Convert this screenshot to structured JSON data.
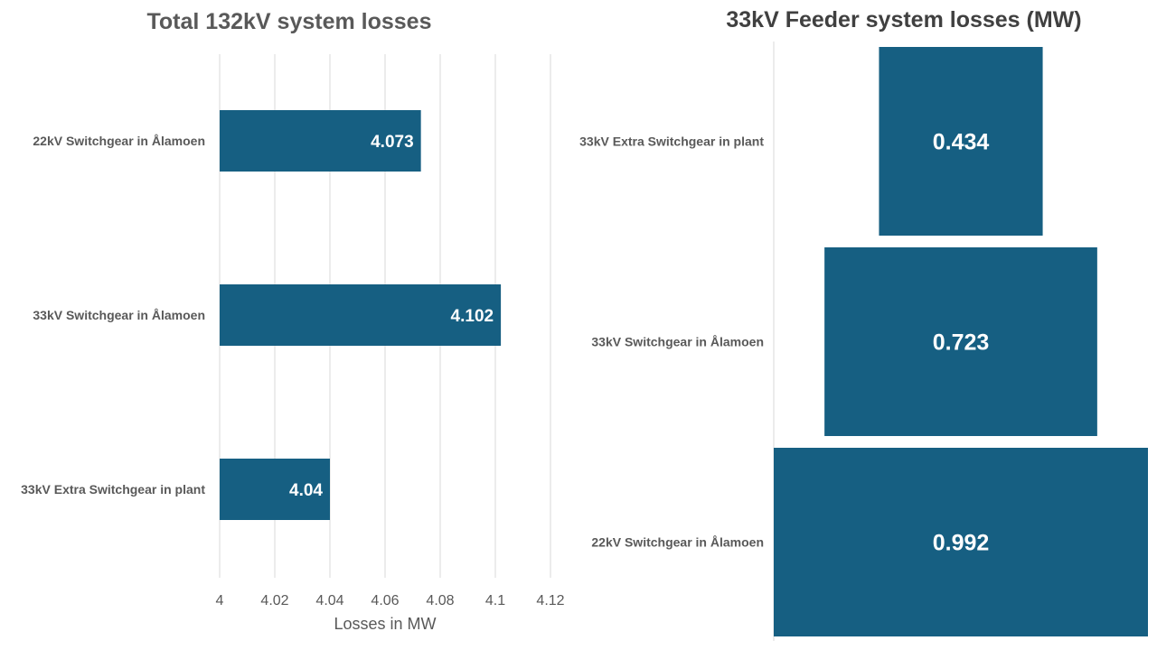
{
  "chart_data": [
    {
      "type": "bar",
      "orientation": "horizontal",
      "title": "Total 132kV  system losses",
      "xlabel": "Losses in MW",
      "ylabel": "",
      "categories": [
        "22kV Switchgear in Ålamoen",
        "33kV Switchgear in Ålamoen",
        "33kV Extra Switchgear in plant"
      ],
      "values": [
        4.073,
        4.102,
        4.04
      ],
      "data_labels": [
        "4.073",
        "4.102",
        "4.04"
      ],
      "xlim": [
        4,
        4.12
      ],
      "ticks": [
        "4",
        "4.02",
        "4.04",
        "4.06",
        "4.08",
        "4.1",
        "4.12"
      ],
      "grid": true,
      "color": "#165F82"
    },
    {
      "type": "funnel",
      "title": "33kV Feeder system losses (MW)",
      "categories": [
        "33kV Extra Switchgear in plant",
        "33kV Switchgear in Ålamoen",
        "22kV Switchgear in Ålamoen"
      ],
      "values": [
        0.434,
        0.723,
        0.992
      ],
      "data_labels": [
        "0.434",
        "0.723",
        "0.992"
      ],
      "color": "#165F82"
    }
  ]
}
